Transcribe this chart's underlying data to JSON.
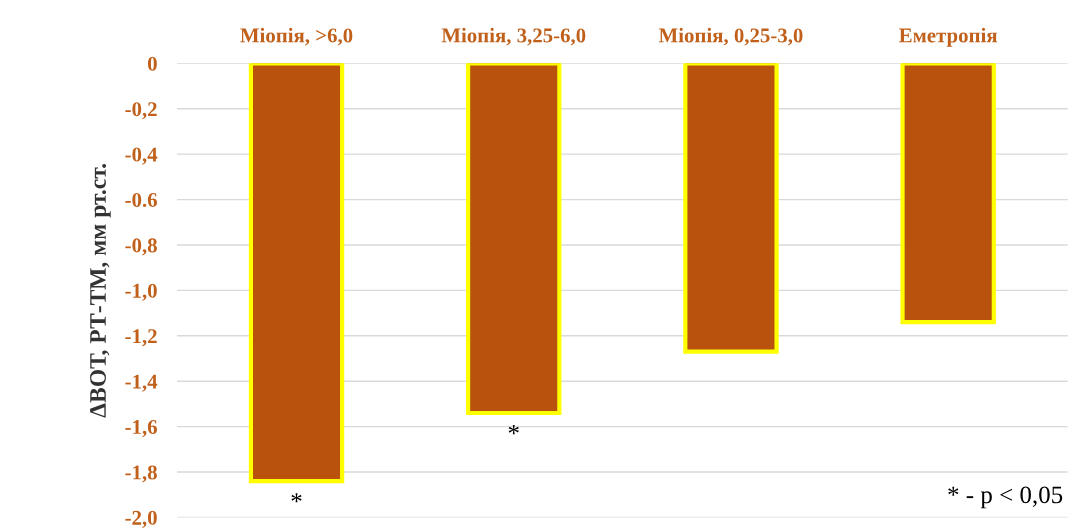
{
  "chart_data": {
    "type": "bar",
    "categories": [
      "Міопія, >6,0",
      "Міопія, 3,25-6,0",
      "Міопія, 0,25-3,0",
      "Еметропія"
    ],
    "values": [
      -1.84,
      -1.54,
      -1.27,
      -1.14
    ],
    "color": "#b8520c",
    "ylabel": "ΔВОТ, РТ-ТМ, мм рт.ст.",
    "ylim": [
      -2.0,
      0
    ],
    "yticks": [
      0,
      {
        "value": -0.2,
        "label": "-0,2"
      },
      {
        "value": -0.4,
        "label": "-0,4"
      },
      {
        "value": -0.6,
        "label": "-0.6"
      },
      {
        "value": -0.8,
        "label": "-0,8"
      },
      {
        "value": -1.0,
        "label": "-1,0"
      },
      {
        "value": -1.2,
        "label": "-1,2"
      },
      {
        "value": -1.4,
        "label": "-1,4"
      },
      {
        "value": -1.6,
        "label": "-1,6"
      },
      {
        "value": -1.8,
        "label": "-1,8"
      },
      {
        "value": -2.0,
        "label": "-2,0"
      }
    ],
    "grid": "y",
    "annotations": [
      {
        "text": "*",
        "x": "Міопія, >6,0",
        "y": -1.84
      },
      {
        "text": "*",
        "x": "Міопія, 3,25-6,0",
        "y": -1.54
      },
      "* - p < 0,05"
    ]
  }
}
